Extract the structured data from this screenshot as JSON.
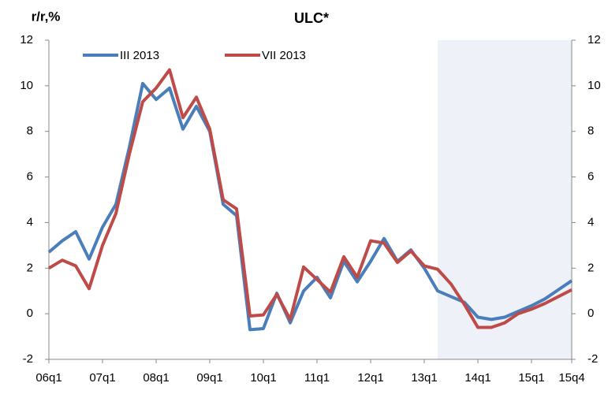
{
  "chart_data": {
    "type": "line",
    "title": "ULC*",
    "y_label": "r/r,%",
    "categories": [
      "06q1",
      null,
      null,
      null,
      "07q1",
      null,
      null,
      null,
      "08q1",
      null,
      null,
      null,
      "09q1",
      null,
      null,
      null,
      "10q1",
      null,
      null,
      null,
      "11q1",
      null,
      null,
      null,
      "12q1",
      null,
      null,
      null,
      "13q1",
      null,
      null,
      null,
      "14q1",
      null,
      null,
      null,
      "15q1",
      null,
      null,
      "15q4"
    ],
    "series": [
      {
        "name": "III 2013",
        "color": "#4a7ebb",
        "values": [
          2.7,
          3.2,
          3.6,
          2.4,
          3.8,
          4.8,
          7.3,
          10.1,
          9.4,
          9.9,
          8.1,
          9.1,
          8.0,
          4.8,
          4.3,
          -0.7,
          -0.65,
          0.9,
          -0.4,
          1.0,
          1.6,
          0.7,
          2.3,
          1.4,
          2.3,
          3.3,
          2.3,
          2.8,
          2.0,
          1.0,
          0.75,
          0.5,
          -0.15,
          -0.25,
          -0.15,
          0.1,
          0.35,
          0.65,
          1.05,
          1.45
        ]
      },
      {
        "name": "VII 2013",
        "color": "#be4b48",
        "values": [
          2.0,
          2.35,
          2.1,
          1.1,
          3.0,
          4.4,
          7.0,
          9.3,
          9.9,
          10.7,
          8.6,
          9.5,
          8.1,
          5.0,
          4.6,
          -0.1,
          -0.05,
          0.85,
          -0.25,
          2.05,
          1.5,
          0.95,
          2.5,
          1.6,
          3.2,
          3.1,
          2.25,
          2.75,
          2.1,
          1.95,
          1.3,
          0.4,
          -0.6,
          -0.6,
          -0.4,
          0.0,
          0.2,
          0.45,
          0.75,
          1.05
        ]
      }
    ],
    "ylim": [
      -2,
      12
    ],
    "yticks": [
      -2,
      0,
      2,
      4,
      6,
      8,
      10,
      12
    ],
    "y2lim": [
      -2,
      12
    ],
    "y2ticks": [
      -2,
      0,
      2,
      4,
      6,
      8,
      10,
      12
    ]
  }
}
